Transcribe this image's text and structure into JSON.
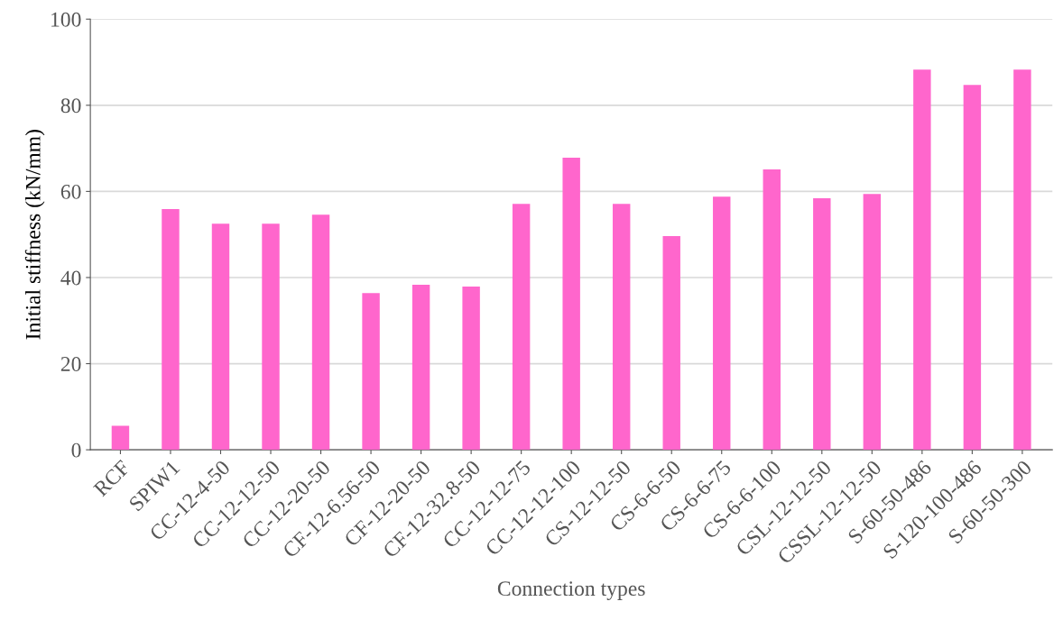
{
  "chart_data": {
    "type": "bar",
    "xlabel": "Connection types",
    "ylabel": "Initial stiffness (kN/mm)",
    "categories": [
      "RCF",
      "SPIW1",
      "CC-12-4-50",
      "CC-12-12-50",
      "CC-12-20-50",
      "CF-12-6.56-50",
      "CF-12-20-50",
      "CF-12-32.8-50",
      "CC-12-12-75",
      "CC-12-12-100",
      "CS-12-12-50",
      "CS-6-6-50",
      "CS-6-6-75",
      "CS-6-6-100",
      "CSL-12-12-50",
      "CSSL-12-12-50",
      "S-60-50-486",
      "S-120-100-486",
      "S-60-50-300"
    ],
    "values": [
      5.6,
      55.9,
      52.5,
      52.5,
      54.6,
      36.4,
      38.3,
      37.9,
      57.1,
      67.8,
      57.1,
      49.6,
      58.8,
      65.1,
      58.4,
      59.4,
      88.3,
      84.7,
      88.3
    ],
    "color": "#ff66cc",
    "ylim": [
      0,
      100
    ],
    "yticks": [
      0,
      20,
      40,
      60,
      80,
      100
    ],
    "grid": "y",
    "legend": false
  }
}
